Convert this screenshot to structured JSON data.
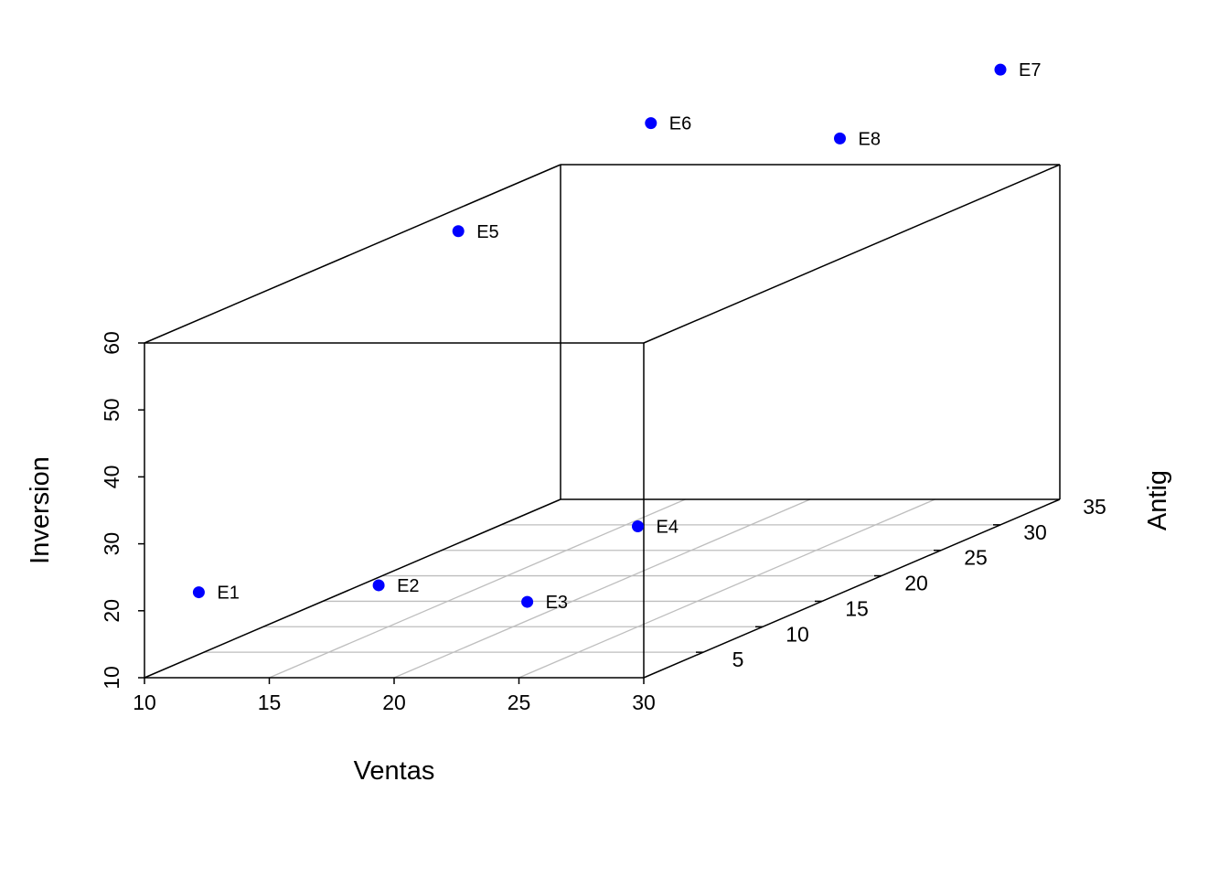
{
  "chart_data": {
    "type": "scatter",
    "projection": "3d",
    "xlabel": "Ventas",
    "ylabel": "Antig",
    "zlabel": "Inversion",
    "xlim": [
      10,
      30
    ],
    "ylim": [
      0,
      35
    ],
    "zlim": [
      10,
      60
    ],
    "x_ticks": [
      10,
      15,
      20,
      25,
      30
    ],
    "y_ticks": [
      5,
      10,
      15,
      20,
      25,
      30,
      35
    ],
    "z_ticks": [
      10,
      20,
      30,
      40,
      50,
      60
    ],
    "grid": true,
    "point_color": "#0000ff",
    "points": [
      {
        "label": "E1",
        "x": 11.7,
        "y": 1.0,
        "z": 22.0
      },
      {
        "label": "E2",
        "x": 17.0,
        "y": 5.0,
        "z": 20.0
      },
      {
        "label": "E3",
        "x": 22.0,
        "y": 7.0,
        "z": 16.0
      },
      {
        "label": "E4",
        "x": 25.0,
        "y": 10.0,
        "z": 25.0
      },
      {
        "label": "E5",
        "x": 14.0,
        "y": 18.0,
        "z": 63.0
      },
      {
        "label": "E6",
        "x": 16.0,
        "y": 30.0,
        "z": 70.0
      },
      {
        "label": "E7",
        "x": 30.0,
        "y": 30.0,
        "z": 78.0
      },
      {
        "label": "E8",
        "x": 25.0,
        "y": 27.0,
        "z": 70.0
      }
    ]
  }
}
